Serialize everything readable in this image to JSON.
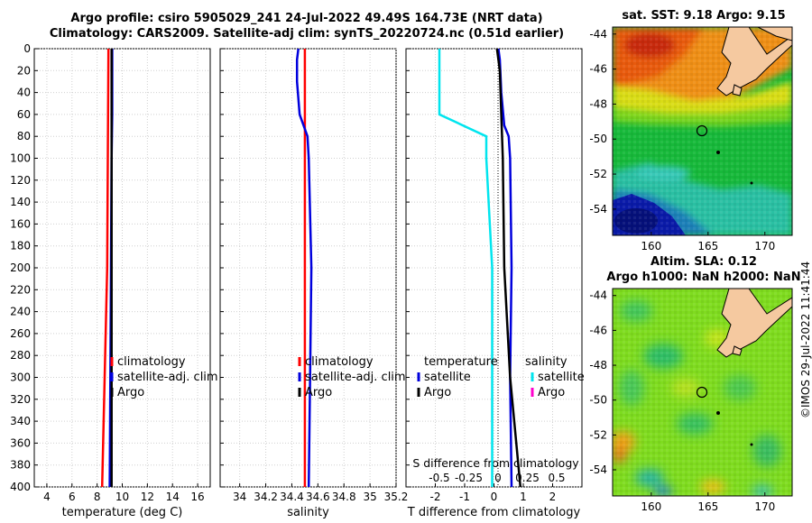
{
  "header": {
    "title_line1": "Argo profile: csiro 5905029_241 24-Jul-2022 49.49S 164.73E (NRT data)",
    "title_line2": "Climatology: CARS2009. Satellite-adj clim: synTS_20220724.nc (0.51d earlier)"
  },
  "maps": {
    "sst_title": "sat. SST: 9.18 Argo: 9.15",
    "sla_title_line1": "Altim. SLA: 0.12",
    "sla_title_line2": "Argo h1000: NaN h2000: NaN",
    "credit": "©IMOS 29-Jul-2022 11:41:44",
    "lon_ticks": [
      "160",
      "165",
      "170"
    ],
    "lat_ticks": [
      "-44",
      "-46",
      "-48",
      "-50",
      "-52",
      "-54"
    ],
    "lon_values": [
      160,
      165,
      170
    ],
    "lat_values": [
      -44,
      -46,
      -48,
      -50,
      -52,
      -54
    ]
  },
  "colors": {
    "climatology": "#ff0000",
    "satellite": "#0000dd",
    "argo": "#000000",
    "sat_diff_S": "#00e5ee",
    "argo_diff_S": "#ff00cc"
  },
  "chart_data": [
    {
      "type": "line",
      "xlabel": "temperature (deg C)",
      "ylabel": "",
      "xlim": [
        3,
        17
      ],
      "ylim": [
        400,
        0
      ],
      "x_ticks": [
        4,
        6,
        8,
        10,
        12,
        14,
        16
      ],
      "x_tick_labels": [
        "4",
        "6",
        "8",
        "10",
        "12",
        "14",
        "16"
      ],
      "y_ticks": [
        0,
        20,
        40,
        60,
        80,
        100,
        120,
        140,
        160,
        180,
        200,
        220,
        240,
        260,
        280,
        300,
        320,
        340,
        360,
        380,
        400
      ],
      "y_tick_labels": [
        "0",
        "20",
        "40",
        "60",
        "80",
        "100",
        "120",
        "140",
        "160",
        "180",
        "200",
        "220",
        "240",
        "260",
        "280",
        "300",
        "320",
        "340",
        "360",
        "380",
        "400"
      ],
      "grid": true,
      "legend": [
        "climatology",
        "satellite-adj. clim",
        "Argo"
      ],
      "series": [
        {
          "name": "climatology",
          "depth": [
            0,
            100,
            200,
            300,
            400
          ],
          "values": [
            8.9,
            8.85,
            8.8,
            8.6,
            8.4
          ]
        },
        {
          "name": "satellite-adj. clim",
          "depth": [
            0,
            60,
            100,
            200,
            300,
            400
          ],
          "values": [
            9.2,
            9.2,
            9.15,
            9.1,
            9.05,
            9.0
          ]
        },
        {
          "name": "Argo",
          "depth": [
            0,
            100,
            200,
            300,
            400
          ],
          "values": [
            9.15,
            9.15,
            9.15,
            9.15,
            9.15
          ]
        }
      ]
    },
    {
      "type": "line",
      "xlabel": "salinity",
      "ylabel": "",
      "xlim": [
        33.85,
        35.2
      ],
      "ylim": [
        400,
        0
      ],
      "x_ticks": [
        34,
        34.2,
        34.4,
        34.6,
        34.8,
        35,
        35.2
      ],
      "x_tick_labels": [
        "34",
        "34.2",
        "34.4",
        "34.6",
        "34.8",
        "35",
        "35.2"
      ],
      "y_ticks": [
        0,
        20,
        40,
        60,
        80,
        100,
        120,
        140,
        160,
        180,
        200,
        220,
        240,
        260,
        280,
        300,
        320,
        340,
        360,
        380,
        400
      ],
      "grid": true,
      "legend": [
        "climatology",
        "satellite-adj. clim",
        "Argo"
      ],
      "series": [
        {
          "name": "climatology",
          "depth": [
            0,
            80,
            100,
            200,
            300,
            400
          ],
          "values": [
            34.5,
            34.5,
            34.5,
            34.5,
            34.5,
            34.5
          ]
        },
        {
          "name": "satellite-adj. clim",
          "depth": [
            0,
            10,
            30,
            60,
            80,
            100,
            200,
            300,
            400
          ],
          "values": [
            34.45,
            34.44,
            34.44,
            34.46,
            34.52,
            34.53,
            34.55,
            34.54,
            34.53
          ]
        },
        {
          "name": "Argo",
          "depth": [],
          "values": []
        }
      ]
    },
    {
      "type": "line",
      "xlabel": "T difference from climatology",
      "xlabel_top": "S difference from climatology",
      "xlim": [
        -3,
        3
      ],
      "ylim": [
        400,
        0
      ],
      "x_ticks": [
        -2,
        -1,
        0,
        1,
        2
      ],
      "x_tick_labels": [
        "-2",
        "-1",
        "0",
        "1",
        "2"
      ],
      "x_ticks_S": [
        -0.5,
        -0.25,
        0,
        0.25,
        0.5
      ],
      "x_tick_labels_S": [
        "-0.5",
        "-0.25",
        "0",
        "0.25",
        "0.5"
      ],
      "grid": true,
      "legend_temperature_title": "temperature",
      "legend_salinity_title": "salinity",
      "legend_temperature": [
        "satellite",
        "Argo"
      ],
      "legend_salinity": [
        "satellite",
        "Argo"
      ],
      "series": [
        {
          "name": "temperature satellite",
          "depth": [
            0,
            10,
            40,
            70,
            80,
            100,
            200,
            300,
            400
          ],
          "values": [
            0.15,
            0.2,
            0.25,
            0.35,
            0.5,
            0.55,
            0.6,
            0.55,
            0.6
          ]
        },
        {
          "name": "temperature Argo",
          "depth": [
            0,
            20,
            60,
            100,
            200,
            300,
            400
          ],
          "values": [
            0.1,
            0.2,
            0.25,
            0.3,
            0.35,
            0.55,
            0.9
          ]
        },
        {
          "name": "salinity satellite",
          "depth": [
            0,
            20,
            60,
            80,
            100,
            200,
            300,
            400
          ],
          "values": [
            -0.5,
            -0.5,
            -0.5,
            -0.1,
            -0.1,
            -0.05,
            -0.05,
            -0.05
          ]
        }
      ]
    }
  ]
}
